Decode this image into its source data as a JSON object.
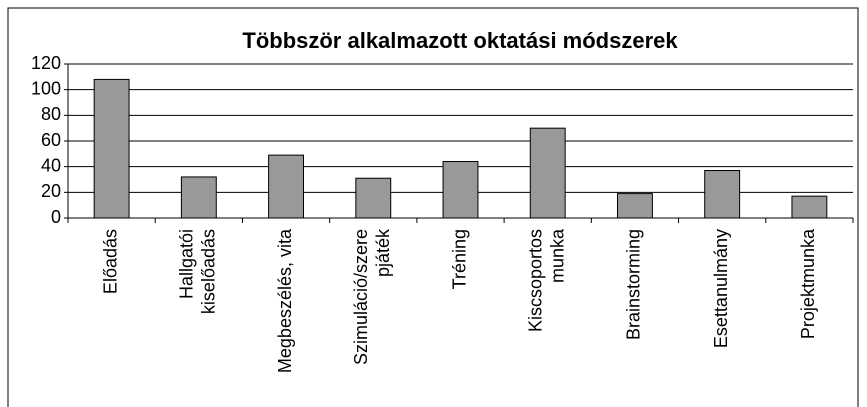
{
  "chart_data": {
    "type": "bar",
    "title": "Többször alkalmazott oktatási módszerek",
    "categories": [
      [
        "Előadás"
      ],
      [
        "Hallgatói",
        "kiselőadás"
      ],
      [
        "Megbeszélés, vita"
      ],
      [
        "Szimuláció/szere",
        "pjáték"
      ],
      [
        "Tréning"
      ],
      [
        "Kiscsoportos",
        "munka"
      ],
      [
        "Brainstorming"
      ],
      [
        "Esettanulmány"
      ],
      [
        "Projektmunka"
      ]
    ],
    "values": [
      108,
      32,
      49,
      31,
      44,
      70,
      19,
      37,
      17
    ],
    "color": "#999999",
    "ylim": [
      0,
      120
    ],
    "yticks": [
      0,
      20,
      40,
      60,
      80,
      100,
      120
    ],
    "grid": true
  }
}
